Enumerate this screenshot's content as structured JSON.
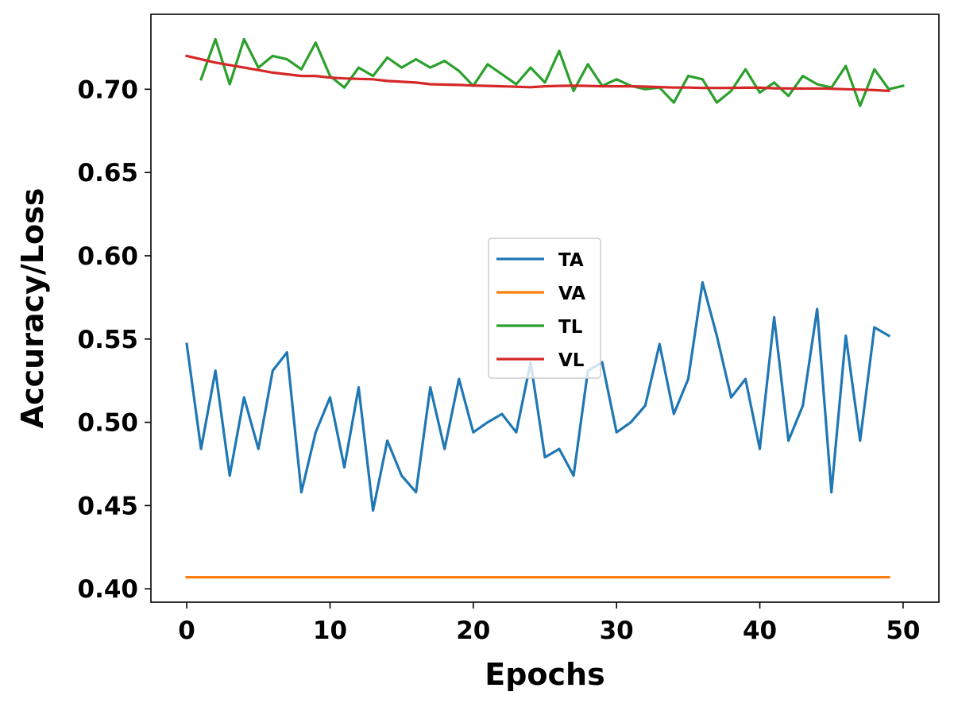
{
  "chart_data": {
    "type": "line",
    "title": "",
    "xlabel": "Epochs",
    "ylabel": "Accuracy/Loss",
    "xlim": [
      -2.5,
      52.5
    ],
    "ylim": [
      0.392,
      0.745
    ],
    "x_ticks": [
      0,
      10,
      20,
      30,
      40,
      50
    ],
    "y_ticks": [
      0.4,
      0.45,
      0.5,
      0.55,
      0.6,
      0.65,
      0.7
    ],
    "y_tick_labels": [
      "0.40",
      "0.45",
      "0.50",
      "0.55",
      "0.60",
      "0.65",
      "0.70"
    ],
    "grid": false,
    "legend_position": "center-right",
    "series": [
      {
        "name": "TA",
        "color": "#1f77b4",
        "x": [
          0,
          1,
          2,
          3,
          4,
          5,
          6,
          7,
          8,
          9,
          10,
          11,
          12,
          13,
          14,
          15,
          16,
          17,
          18,
          19,
          20,
          21,
          22,
          23,
          24,
          25,
          26,
          27,
          28,
          29,
          30,
          31,
          32,
          33,
          34,
          35,
          36,
          37,
          38,
          39,
          40,
          41,
          42,
          43,
          44,
          45,
          46,
          47,
          48,
          49
        ],
        "values": [
          0.547,
          0.484,
          0.531,
          0.468,
          0.515,
          0.484,
          0.531,
          0.542,
          0.458,
          0.494,
          0.515,
          0.473,
          0.521,
          0.447,
          0.489,
          0.468,
          0.458,
          0.521,
          0.484,
          0.526,
          0.494,
          0.5,
          0.505,
          0.494,
          0.536,
          0.479,
          0.484,
          0.468,
          0.531,
          0.536,
          0.494,
          0.5,
          0.51,
          0.547,
          0.505,
          0.526,
          0.584,
          0.552,
          0.515,
          0.526,
          0.484,
          0.563,
          0.489,
          0.51,
          0.568,
          0.458,
          0.552,
          0.489,
          0.557,
          0.552
        ]
      },
      {
        "name": "VA",
        "color": "#ff7f0e",
        "x": [
          0,
          1,
          2,
          3,
          4,
          5,
          6,
          7,
          8,
          9,
          10,
          11,
          12,
          13,
          14,
          15,
          16,
          17,
          18,
          19,
          20,
          21,
          22,
          23,
          24,
          25,
          26,
          27,
          28,
          29,
          30,
          31,
          32,
          33,
          34,
          35,
          36,
          37,
          38,
          39,
          40,
          41,
          42,
          43,
          44,
          45,
          46,
          47,
          48,
          49
        ],
        "values": [
          0.407,
          0.407,
          0.407,
          0.407,
          0.407,
          0.407,
          0.407,
          0.407,
          0.407,
          0.407,
          0.407,
          0.407,
          0.407,
          0.407,
          0.407,
          0.407,
          0.407,
          0.407,
          0.407,
          0.407,
          0.407,
          0.407,
          0.407,
          0.407,
          0.407,
          0.407,
          0.407,
          0.407,
          0.407,
          0.407,
          0.407,
          0.407,
          0.407,
          0.407,
          0.407,
          0.407,
          0.407,
          0.407,
          0.407,
          0.407,
          0.407,
          0.407,
          0.407,
          0.407,
          0.407,
          0.407,
          0.407,
          0.407,
          0.407,
          0.407
        ]
      },
      {
        "name": "TL",
        "color": "#2ca02c",
        "x": [
          1,
          2,
          3,
          4,
          5,
          6,
          7,
          8,
          9,
          10,
          11,
          12,
          13,
          14,
          15,
          16,
          17,
          18,
          19,
          20,
          21,
          22,
          23,
          24,
          25,
          26,
          27,
          28,
          29,
          30,
          31,
          32,
          33,
          34,
          35,
          36,
          37,
          38,
          39,
          40,
          41,
          42,
          43,
          44,
          45,
          46,
          47,
          48,
          49,
          50
        ],
        "values": [
          0.706,
          0.73,
          0.703,
          0.73,
          0.713,
          0.72,
          0.718,
          0.712,
          0.728,
          0.708,
          0.701,
          0.713,
          0.708,
          0.719,
          0.713,
          0.718,
          0.713,
          0.717,
          0.711,
          0.702,
          0.715,
          0.709,
          0.703,
          0.713,
          0.704,
          0.723,
          0.699,
          0.715,
          0.702,
          0.706,
          0.702,
          0.7,
          0.701,
          0.692,
          0.708,
          0.706,
          0.692,
          0.699,
          0.712,
          0.698,
          0.704,
          0.696,
          0.708,
          0.703,
          0.701,
          0.714,
          0.69,
          0.712,
          0.7,
          0.702
        ]
      },
      {
        "name": "VL",
        "color": "#d62728",
        "x": [
          0,
          1,
          2,
          3,
          4,
          5,
          6,
          7,
          8,
          9,
          10,
          11,
          12,
          13,
          14,
          15,
          16,
          17,
          18,
          19,
          20,
          21,
          22,
          23,
          24,
          25,
          26,
          27,
          28,
          29,
          30,
          31,
          32,
          33,
          34,
          35,
          36,
          37,
          38,
          39,
          40,
          41,
          42,
          43,
          44,
          45,
          46,
          47,
          48,
          49
        ],
        "values": [
          0.72,
          0.718,
          0.716,
          0.7145,
          0.713,
          0.7115,
          0.71,
          0.709,
          0.708,
          0.708,
          0.707,
          0.7065,
          0.7062,
          0.706,
          0.705,
          0.7045,
          0.704,
          0.703,
          0.7028,
          0.7026,
          0.7022,
          0.702,
          0.7018,
          0.7015,
          0.7012,
          0.7018,
          0.702,
          0.7021,
          0.702,
          0.7018,
          0.7018,
          0.7018,
          0.7016,
          0.7013,
          0.701,
          0.701,
          0.7008,
          0.7008,
          0.7008,
          0.7009,
          0.7009,
          0.7006,
          0.7005,
          0.7004,
          0.7005,
          0.7003,
          0.7,
          0.6998,
          0.6995,
          0.699
        ]
      }
    ]
  }
}
